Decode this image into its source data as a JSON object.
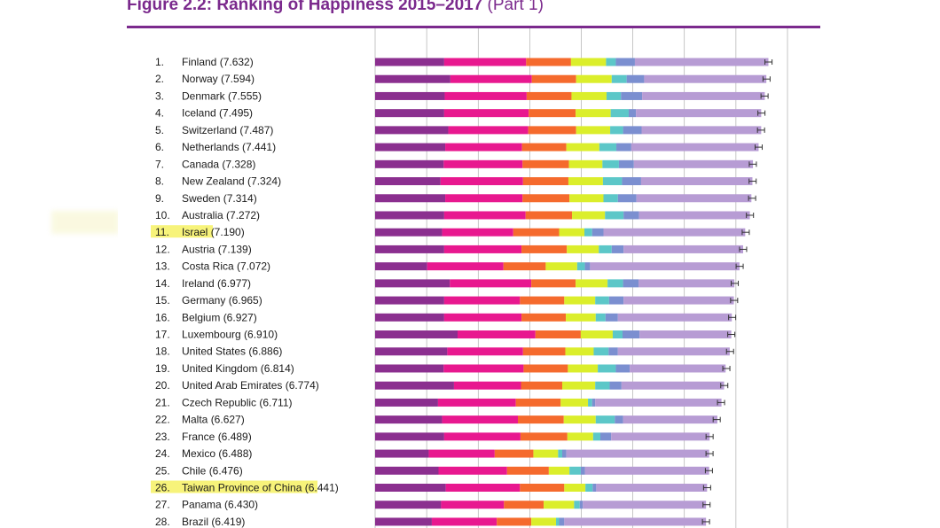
{
  "figure": {
    "title": "Figure 2.2: Ranking of Happiness 2015–2017",
    "subtitle": "(Part 1)"
  },
  "colors": {
    "title": "#7b2a8d",
    "highlight": "#f7f37a",
    "segments": [
      "#8b2f8f",
      "#e8188f",
      "#f56a2d",
      "#dbee2b",
      "#5cc7c8",
      "#7b8fd0",
      "#b79cd4"
    ],
    "grid": "#555555"
  },
  "chart_data": {
    "type": "bar",
    "orientation": "horizontal",
    "stacked": true,
    "title": "Figure 2.2: Ranking of Happiness 2015–2017 (Part 1)",
    "rows": [
      {
        "rank": "1.",
        "name": "Finland",
        "score": "(7.632)",
        "value": 7.632,
        "segs": [
          1.34,
          1.59,
          0.87,
          0.68,
          0.19,
          0.37,
          2.59
        ],
        "highlight": false
      },
      {
        "rank": "2.",
        "name": "Norway",
        "score": "(7.594)",
        "value": 7.594,
        "segs": [
          1.46,
          1.58,
          0.86,
          0.69,
          0.29,
          0.34,
          2.37
        ],
        "highlight": false
      },
      {
        "rank": "3.",
        "name": "Denmark",
        "score": "(7.555)",
        "value": 7.555,
        "segs": [
          1.35,
          1.59,
          0.87,
          0.68,
          0.28,
          0.41,
          2.38
        ],
        "highlight": false
      },
      {
        "rank": "4.",
        "name": "Iceland",
        "score": "(7.495)",
        "value": 7.495,
        "segs": [
          1.34,
          1.64,
          0.91,
          0.68,
          0.35,
          0.14,
          2.43
        ],
        "highlight": false
      },
      {
        "rank": "5.",
        "name": "Switzerland",
        "score": "(7.487)",
        "value": 7.487,
        "segs": [
          1.42,
          1.55,
          0.93,
          0.66,
          0.25,
          0.36,
          2.32
        ],
        "highlight": false
      },
      {
        "rank": "6.",
        "name": "Netherlands",
        "score": "(7.441)",
        "value": 7.441,
        "segs": [
          1.36,
          1.49,
          0.86,
          0.64,
          0.33,
          0.29,
          2.47
        ],
        "highlight": false
      },
      {
        "rank": "7.",
        "name": "Canada",
        "score": "(7.328)",
        "value": 7.328,
        "segs": [
          1.33,
          1.53,
          0.9,
          0.65,
          0.32,
          0.29,
          2.31
        ],
        "highlight": false
      },
      {
        "rank": "8.",
        "name": "New Zealand",
        "score": "(7.324)",
        "value": 7.324,
        "segs": [
          1.27,
          1.6,
          0.88,
          0.67,
          0.37,
          0.37,
          2.16
        ],
        "highlight": false
      },
      {
        "rank": "9.",
        "name": "Sweden",
        "score": "(7.314)",
        "value": 7.314,
        "segs": [
          1.36,
          1.5,
          0.91,
          0.66,
          0.28,
          0.36,
          2.23
        ],
        "highlight": false
      },
      {
        "rank": "10.",
        "name": "Australia",
        "score": "(7.272)",
        "value": 7.272,
        "segs": [
          1.34,
          1.58,
          0.9,
          0.64,
          0.36,
          0.3,
          2.15
        ],
        "highlight": false
      },
      {
        "rank": "11.",
        "name": "Israel",
        "score": "(7.190)",
        "value": 7.19,
        "segs": [
          1.3,
          1.38,
          0.89,
          0.49,
          0.15,
          0.22,
          2.75
        ],
        "highlight": true
      },
      {
        "rank": "12.",
        "name": "Austria",
        "score": "(7.139)",
        "value": 7.139,
        "segs": [
          1.34,
          1.5,
          0.88,
          0.62,
          0.25,
          0.23,
          2.32
        ],
        "highlight": false
      },
      {
        "rank": "13.",
        "name": "Costa Rica",
        "score": "(7.072)",
        "value": 7.072,
        "segs": [
          1.01,
          1.48,
          0.82,
          0.61,
          0.15,
          0.1,
          2.9
        ],
        "highlight": false
      },
      {
        "rank": "14.",
        "name": "Ireland",
        "score": "(6.977)",
        "value": 6.977,
        "segs": [
          1.45,
          1.58,
          0.86,
          0.62,
          0.3,
          0.3,
          1.86
        ],
        "highlight": false
      },
      {
        "rank": "15.",
        "name": "Germany",
        "score": "(6.965)",
        "value": 6.965,
        "segs": [
          1.34,
          1.47,
          0.86,
          0.6,
          0.27,
          0.28,
          2.14
        ],
        "highlight": false
      },
      {
        "rank": "16.",
        "name": "Belgium",
        "score": "(6.927)",
        "value": 6.927,
        "segs": [
          1.34,
          1.5,
          0.86,
          0.58,
          0.19,
          0.24,
          2.21
        ],
        "highlight": false
      },
      {
        "rank": "17.",
        "name": "Luxembourg",
        "score": "(6.910)",
        "value": 6.91,
        "segs": [
          1.6,
          1.51,
          0.88,
          0.62,
          0.19,
          0.33,
          1.78
        ],
        "highlight": false
      },
      {
        "rank": "18.",
        "name": "United States",
        "score": "(6.886)",
        "value": 6.886,
        "segs": [
          1.4,
          1.47,
          0.82,
          0.55,
          0.29,
          0.18,
          2.17
        ],
        "highlight": false
      },
      {
        "rank": "19.",
        "name": "United Kingdom",
        "score": "(6.814)",
        "value": 6.814,
        "segs": [
          1.33,
          1.55,
          0.86,
          0.58,
          0.35,
          0.27,
          1.86
        ],
        "highlight": false
      },
      {
        "rank": "20.",
        "name": "United Arab Emirates",
        "score": "(6.774)",
        "value": 6.774,
        "segs": [
          1.53,
          1.3,
          0.8,
          0.64,
          0.28,
          0.23,
          1.99
        ],
        "highlight": false
      },
      {
        "rank": "21.",
        "name": "Czech Republic",
        "score": "(6.711)",
        "value": 6.711,
        "segs": [
          1.22,
          1.51,
          0.87,
          0.53,
          0.08,
          0.06,
          2.45
        ],
        "highlight": false
      },
      {
        "rank": "22.",
        "name": "Malta",
        "score": "(6.627)",
        "value": 6.627,
        "segs": [
          1.3,
          1.47,
          0.89,
          0.62,
          0.37,
          0.16,
          1.83
        ],
        "highlight": false
      },
      {
        "rank": "23.",
        "name": "France",
        "score": "(6.489)",
        "value": 6.489,
        "segs": [
          1.34,
          1.48,
          0.91,
          0.5,
          0.14,
          0.21,
          1.91
        ],
        "highlight": false
      },
      {
        "rank": "24.",
        "name": "Mexico",
        "score": "(6.488)",
        "value": 6.488,
        "segs": [
          1.04,
          1.28,
          0.75,
          0.48,
          0.08,
          0.08,
          2.77
        ],
        "highlight": false
      },
      {
        "rank": "25.",
        "name": "Chile",
        "score": "(6.476)",
        "value": 6.476,
        "segs": [
          1.23,
          1.33,
          0.81,
          0.4,
          0.22,
          0.08,
          2.41
        ],
        "highlight": false
      },
      {
        "rank": "26.",
        "name": "Taiwan Province of China",
        "score": "(6.441)",
        "value": 6.441,
        "segs": [
          1.37,
          1.44,
          0.86,
          0.41,
          0.14,
          0.07,
          2.15
        ],
        "highlight": true
      },
      {
        "rank": "27.",
        "name": "Panama",
        "score": "(6.430)",
        "value": 6.43,
        "segs": [
          1.28,
          1.22,
          0.77,
          0.59,
          0.11,
          0.06,
          2.39
        ],
        "highlight": false
      },
      {
        "rank": "28.",
        "name": "Brazil",
        "score": "(6.419)",
        "value": 6.419,
        "segs": [
          1.1,
          1.26,
          0.67,
          0.48,
          0.06,
          0.1,
          2.75
        ],
        "highlight": false
      }
    ],
    "xlim": [
      0,
      8
    ],
    "grid": true,
    "error_bars": true
  }
}
